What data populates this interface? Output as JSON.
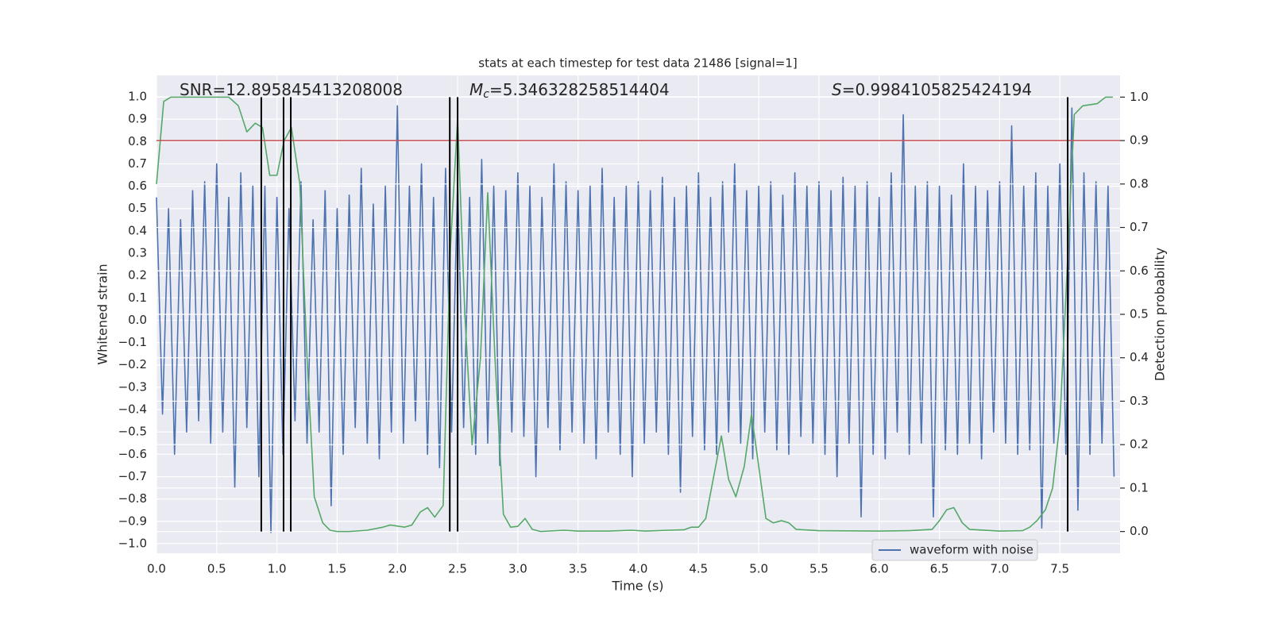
{
  "chart_data": {
    "type": "line",
    "title": "stats at each timestep for test data 21486 [signal=1]",
    "xlabel": "Time (s)",
    "ylabel": "Whitened strain",
    "y2label": "Detection probability",
    "xlim": [
      0,
      8
    ],
    "ylim": [
      -1.043,
      1.096
    ],
    "y2lim": [
      -0.05,
      1.05
    ],
    "xticks": [
      {
        "value": 0,
        "label": "0.0"
      },
      0.5,
      {
        "value": 1,
        "label": "1.0"
      },
      1.5,
      {
        "value": 2,
        "label": "2.0"
      },
      2.5,
      {
        "value": 3,
        "label": "3.0"
      },
      3.5,
      {
        "value": 4,
        "label": "4.0"
      },
      4.5,
      {
        "value": 5,
        "label": "5.0"
      },
      5.5,
      {
        "value": 6,
        "label": "6.0"
      },
      6.5,
      {
        "value": 7,
        "label": "7.0"
      },
      7.5
    ],
    "yticks": [
      {
        "value": -1,
        "label": "−1.0"
      },
      {
        "value": -0.9,
        "label": "−0.9"
      },
      {
        "value": -0.8,
        "label": "−0.8"
      },
      {
        "value": -0.7,
        "label": "−0.7"
      },
      {
        "value": -0.6,
        "label": "−0.6"
      },
      {
        "value": -0.5,
        "label": "−0.5"
      },
      {
        "value": -0.4,
        "label": "−0.4"
      },
      {
        "value": -0.3,
        "label": "−0.3"
      },
      {
        "value": -0.2,
        "label": "−0.2"
      },
      {
        "value": -0.1,
        "label": "−0.1"
      },
      {
        "value": 0,
        "label": "0.0"
      },
      0.1,
      0.2,
      0.3,
      0.4,
      0.5,
      0.6,
      0.7,
      0.8,
      0.9,
      {
        "value": 1,
        "label": "1.0"
      }
    ],
    "y2ticks": [
      {
        "value": 0,
        "label": "0.0"
      },
      0.1,
      0.2,
      0.3,
      0.4,
      0.5,
      0.6,
      0.7,
      0.8,
      0.9,
      {
        "value": 1,
        "label": "1.0"
      }
    ],
    "grid": true,
    "legend": "lower right",
    "annotations": [
      {
        "text": "SNR=12.895845413208008"
      },
      {
        "symbol": "M",
        "subscript": "c",
        "text": "=5.346328258514404"
      },
      {
        "symbol": "S",
        "text": "=0.9984105825424194"
      }
    ],
    "hlines": [
      {
        "y": 0.9,
        "axis": "y2",
        "color": "#c44e52"
      }
    ],
    "vlines": {
      "x": [
        0.87,
        1.055,
        1.115,
        2.435,
        2.5,
        7.565
      ],
      "ymin": 0,
      "ymax": 1,
      "axis": "y2",
      "color": "#000000"
    },
    "series": [
      {
        "name": "waveform with noise",
        "color": "#4c72b0",
        "x": [
          0,
          0.05,
          0.1,
          0.15,
          0.2,
          0.25,
          0.3,
          0.35,
          0.4,
          0.45,
          0.5,
          0.55,
          0.6,
          0.65,
          0.7,
          0.75,
          0.8,
          0.85,
          0.9,
          0.95,
          1,
          1.05,
          1.1,
          1.15,
          1.2,
          1.25,
          1.3,
          1.35,
          1.4,
          1.45,
          1.5,
          1.55,
          1.6,
          1.65,
          1.7,
          1.75,
          1.8,
          1.85,
          1.9,
          1.95,
          2,
          2.05,
          2.1,
          2.15,
          2.2,
          2.25,
          2.3,
          2.35,
          2.4,
          2.45,
          2.5,
          2.55,
          2.6,
          2.65,
          2.7,
          2.75,
          2.8,
          2.85,
          2.9,
          2.95,
          3,
          3.05,
          3.1,
          3.15,
          3.2,
          3.25,
          3.3,
          3.35,
          3.4,
          3.45,
          3.5,
          3.55,
          3.6,
          3.65,
          3.7,
          3.75,
          3.8,
          3.85,
          3.9,
          3.95,
          4,
          4.05,
          4.1,
          4.15,
          4.2,
          4.25,
          4.3,
          4.35,
          4.4,
          4.45,
          4.5,
          4.55,
          4.6,
          4.65,
          4.7,
          4.75,
          4.8,
          4.85,
          4.9,
          4.95,
          5,
          5.05,
          5.1,
          5.15,
          5.2,
          5.25,
          5.3,
          5.35,
          5.4,
          5.45,
          5.5,
          5.55,
          5.6,
          5.65,
          5.7,
          5.75,
          5.8,
          5.85,
          5.9,
          5.95,
          6,
          6.05,
          6.1,
          6.15,
          6.2,
          6.25,
          6.3,
          6.35,
          6.4,
          6.45,
          6.5,
          6.55,
          6.6,
          6.65,
          6.7,
          6.75,
          6.8,
          6.85,
          6.9,
          6.95,
          7,
          7.05,
          7.1,
          7.15,
          7.2,
          7.25,
          7.3,
          7.35,
          7.4,
          7.45,
          7.5,
          7.55,
          7.6,
          7.65,
          7.7,
          7.75,
          7.8,
          7.85,
          7.9,
          7.95
        ],
        "values": [
          0.55,
          -0.42,
          0.5,
          -0.6,
          0.45,
          -0.5,
          0.58,
          -0.45,
          0.62,
          -0.55,
          0.7,
          -0.5,
          0.55,
          -0.75,
          0.66,
          -0.48,
          0.6,
          -0.7,
          0.6,
          -0.95,
          0.55,
          -0.6,
          0.5,
          -0.45,
          0.62,
          -0.55,
          0.45,
          -0.5,
          0.58,
          -0.83,
          0.5,
          -0.6,
          0.56,
          -0.48,
          0.68,
          -0.55,
          0.52,
          -0.62,
          0.6,
          -0.5,
          0.96,
          -0.55,
          0.6,
          -0.45,
          0.7,
          -0.6,
          0.55,
          -0.66,
          0.68,
          -0.5,
          0.62,
          -0.48,
          0.55,
          -0.6,
          0.72,
          -0.55,
          0.6,
          -0.65,
          0.58,
          -0.5,
          0.66,
          -0.52,
          0.6,
          -0.7,
          0.55,
          -0.48,
          0.7,
          -0.58,
          0.62,
          -0.5,
          0.58,
          -0.55,
          0.6,
          -0.62,
          0.68,
          -0.5,
          0.55,
          -0.6,
          0.6,
          -0.7,
          0.62,
          -0.55,
          0.58,
          -0.5,
          0.64,
          -0.6,
          0.55,
          -0.77,
          0.6,
          -0.52,
          0.66,
          -0.58,
          0.55,
          -0.6,
          0.62,
          -0.5,
          0.7,
          -0.55,
          0.58,
          -0.62,
          0.6,
          -0.5,
          0.62,
          -0.58,
          0.56,
          -0.6,
          0.66,
          -0.52,
          0.6,
          -0.55,
          0.62,
          -0.6,
          0.58,
          -0.7,
          0.64,
          -0.55,
          0.6,
          -0.88,
          0.62,
          -0.6,
          0.55,
          -0.62,
          0.66,
          -0.5,
          0.92,
          -0.6,
          0.6,
          -0.55,
          0.62,
          -0.88,
          0.6,
          -0.58,
          0.56,
          -0.6,
          0.7,
          -0.55,
          0.6,
          -0.62,
          0.58,
          -0.5,
          0.62,
          -0.55,
          0.87,
          -0.6,
          0.6,
          -0.58,
          0.66,
          -0.93,
          0.6,
          -0.55,
          0.7,
          -0.6,
          0.95,
          -0.85,
          0.66,
          -0.6,
          0.62,
          -0.55,
          0.6,
          -0.7
        ]
      },
      {
        "color": "#55a868",
        "axis": "y2",
        "x": [
          0,
          0.06,
          0.12,
          0.25,
          0.4,
          0.6,
          0.68,
          0.75,
          0.82,
          0.88,
          0.94,
          1,
          1.06,
          1.12,
          1.19,
          1.25,
          1.31,
          1.38,
          1.44,
          1.5,
          1.6,
          1.75,
          1.88,
          1.94,
          2.06,
          2.12,
          2.19,
          2.25,
          2.31,
          2.38,
          2.44,
          2.5,
          2.56,
          2.62,
          2.69,
          2.75,
          2.81,
          2.88,
          2.94,
          3,
          3.06,
          3.12,
          3.19,
          3.38,
          3.5,
          3.75,
          3.94,
          4.06,
          4.25,
          4.38,
          4.44,
          4.5,
          4.56,
          4.69,
          4.75,
          4.81,
          4.88,
          4.94,
          5,
          5.06,
          5.12,
          5.19,
          5.25,
          5.31,
          5.5,
          6,
          6.25,
          6.44,
          6.5,
          6.56,
          6.62,
          6.69,
          6.75,
          7,
          7.19,
          7.25,
          7.31,
          7.38,
          7.44,
          7.5,
          7.56,
          7.62,
          7.69,
          7.81,
          7.88,
          7.94
        ],
        "values": [
          0.8,
          0.99,
          1,
          1,
          1,
          1,
          0.98,
          0.92,
          0.94,
          0.93,
          0.82,
          0.82,
          0.9,
          0.93,
          0.8,
          0.4,
          0.08,
          0.02,
          0.003,
          0,
          0,
          0.003,
          0.01,
          0.015,
          0.01,
          0.015,
          0.045,
          0.055,
          0.033,
          0.06,
          0.65,
          0.95,
          0.5,
          0.2,
          0.4,
          0.78,
          0.4,
          0.04,
          0.01,
          0.012,
          0.03,
          0.005,
          0,
          0.003,
          0.001,
          0.001,
          0.003,
          0.001,
          0.003,
          0.004,
          0.01,
          0.01,
          0.03,
          0.22,
          0.12,
          0.08,
          0.15,
          0.27,
          0.15,
          0.03,
          0.02,
          0.025,
          0.02,
          0.005,
          0.002,
          0.001,
          0.002,
          0.005,
          0.025,
          0.05,
          0.055,
          0.02,
          0.005,
          0.001,
          0.002,
          0.01,
          0.025,
          0.05,
          0.1,
          0.25,
          0.6,
          0.96,
          0.98,
          0.985,
          1,
          1
        ]
      }
    ]
  }
}
